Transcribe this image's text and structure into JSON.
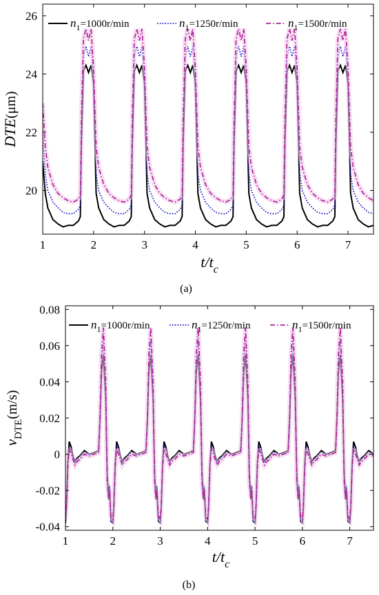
{
  "chart_data": [
    {
      "type": "line",
      "panel_caption": "(a)",
      "ylabel_main": "DTE",
      "ylabel_unit": "(μm)",
      "xlabel_main": "t/t",
      "xlabel_sub": "c",
      "xlim": [
        1,
        7.5
      ],
      "ylim": [
        18.5,
        26.4
      ],
      "xticks": [
        1,
        2,
        3,
        4,
        5,
        6,
        7
      ],
      "yticks": [
        20,
        22,
        24,
        26
      ],
      "legend_position": "top",
      "series": [
        {
          "name": "n1=1000r/min",
          "legend_var": "n",
          "legend_sub": "1",
          "legend_rest": "=1000r/min",
          "color": "#000000",
          "dash": "solid",
          "x": [
            1.0,
            1.05,
            1.1,
            1.2,
            1.3,
            1.4,
            1.5,
            1.6,
            1.7,
            1.74,
            1.76,
            1.8,
            1.85,
            1.9,
            1.95,
            2.0
          ],
          "y": [
            21.0,
            19.9,
            19.4,
            19.0,
            18.85,
            18.75,
            18.8,
            18.8,
            18.95,
            19.1,
            21.6,
            24.1,
            24.3,
            24.05,
            24.3,
            23.7
          ]
        },
        {
          "name": "n1=1250r/min",
          "legend_var": "n",
          "legend_sub": "1",
          "legend_rest": "=1250r/min",
          "color": "#1010c8",
          "dash": "dotted",
          "x": [
            1.0,
            1.05,
            1.1,
            1.2,
            1.3,
            1.4,
            1.5,
            1.6,
            1.7,
            1.74,
            1.76,
            1.8,
            1.85,
            1.9,
            1.95,
            2.0
          ],
          "y": [
            22.0,
            20.6,
            20.0,
            19.6,
            19.4,
            19.25,
            19.2,
            19.2,
            19.35,
            19.5,
            22.0,
            24.6,
            24.95,
            24.6,
            24.95,
            23.9
          ]
        },
        {
          "name": "n1=1500r/min",
          "legend_var": "n",
          "legend_sub": "1",
          "legend_rest": "=1500r/min",
          "color": "#b0209a",
          "dash": "dashdot",
          "x": [
            1.0,
            1.05,
            1.1,
            1.2,
            1.3,
            1.4,
            1.5,
            1.6,
            1.7,
            1.74,
            1.76,
            1.8,
            1.85,
            1.9,
            1.95,
            2.0
          ],
          "y": [
            23.0,
            21.5,
            20.8,
            20.2,
            19.9,
            19.75,
            19.65,
            19.6,
            19.7,
            19.85,
            22.5,
            25.2,
            25.55,
            25.15,
            25.55,
            24.2
          ]
        }
      ]
    },
    {
      "type": "line",
      "panel_caption": "(b)",
      "ylabel_main": "v",
      "ylabel_sub": "DTE",
      "ylabel_unit": "(m/s)",
      "xlabel_main": "t/t",
      "xlabel_sub": "c",
      "xlim": [
        1,
        7.5
      ],
      "ylim": [
        -0.042,
        0.082
      ],
      "xticks": [
        1,
        2,
        3,
        4,
        5,
        6,
        7
      ],
      "yticks": [
        -0.04,
        -0.02,
        0,
        0.02,
        0.04,
        0.06,
        0.08
      ],
      "yticklabels": [
        "-0.04",
        "-0.02",
        "0",
        "0.02",
        "0.04",
        "0.06",
        "0.08"
      ],
      "legend_position": "top",
      "series": [
        {
          "name": "n1=1000r/min",
          "legend_var": "n",
          "legend_sub": "1",
          "legend_rest": "=1000r/min",
          "color": "#000000",
          "dash": "solid",
          "x": [
            1.0,
            1.02,
            1.05,
            1.08,
            1.12,
            1.16,
            1.2,
            1.25,
            1.3,
            1.4,
            1.5,
            1.6,
            1.7,
            1.73,
            1.76,
            1.8,
            1.85,
            1.88,
            1.91,
            1.93,
            1.96,
            2.0
          ],
          "y": [
            -0.038,
            -0.03,
            -0.005,
            0.007,
            0.004,
            -0.001,
            -0.004,
            -0.002,
            -0.001,
            0.002,
            0.0,
            0.001,
            0.002,
            0.02,
            0.045,
            0.055,
            0.03,
            -0.01,
            -0.025,
            -0.018,
            -0.037,
            -0.038
          ]
        },
        {
          "name": "n1=1250r/min",
          "legend_var": "n",
          "legend_sub": "1",
          "legend_rest": "=1250r/min",
          "color": "#1010c8",
          "dash": "dotted",
          "x": [
            1.0,
            1.02,
            1.05,
            1.08,
            1.12,
            1.16,
            1.2,
            1.25,
            1.3,
            1.4,
            1.5,
            1.6,
            1.7,
            1.73,
            1.76,
            1.8,
            1.85,
            1.88,
            1.91,
            1.93,
            1.96,
            2.0
          ],
          "y": [
            -0.038,
            -0.03,
            -0.006,
            0.005,
            0.002,
            -0.002,
            -0.005,
            -0.003,
            -0.002,
            0.001,
            0.0,
            0.0,
            0.001,
            0.02,
            0.05,
            0.063,
            0.035,
            -0.012,
            -0.022,
            -0.017,
            -0.037,
            -0.038
          ]
        },
        {
          "name": "n1=1500r/min",
          "legend_var": "n",
          "legend_sub": "1",
          "legend_rest": "=1500r/min",
          "color": "#b0209a",
          "dash": "dashdot",
          "x": [
            1.0,
            1.02,
            1.05,
            1.08,
            1.12,
            1.16,
            1.2,
            1.25,
            1.3,
            1.4,
            1.5,
            1.6,
            1.7,
            1.73,
            1.76,
            1.8,
            1.85,
            1.88,
            1.91,
            1.93,
            1.96,
            2.0
          ],
          "y": [
            -0.036,
            -0.028,
            -0.007,
            0.003,
            0.0,
            -0.003,
            -0.006,
            -0.004,
            -0.003,
            0.0,
            -0.001,
            0.0,
            0.001,
            0.02,
            0.055,
            0.07,
            0.04,
            -0.015,
            -0.024,
            -0.02,
            -0.034,
            -0.036
          ]
        }
      ]
    }
  ]
}
